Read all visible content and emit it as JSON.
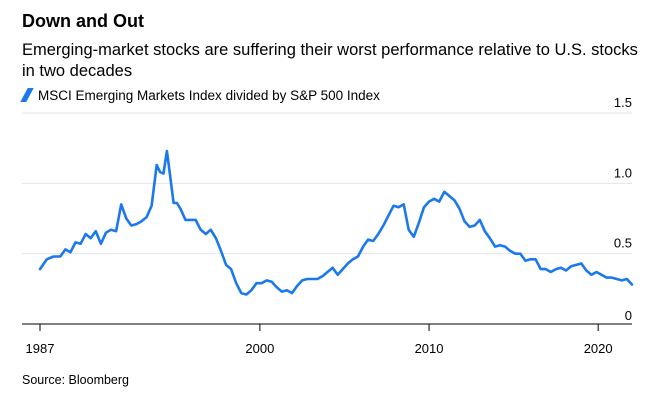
{
  "title": "Down and Out",
  "subtitle": "Emerging-market stocks are suffering their worst performance relative to U.S. stocks in two decades",
  "source": "Source: Bloomberg",
  "colors": {
    "series": "#1b79ec",
    "grid": "#e5e5e5",
    "axis": "#000000"
  },
  "chart_data": {
    "type": "line",
    "title": "Down and Out",
    "subtitle": "Emerging-market stocks are suffering their worst performance relative to U.S. stocks in two decades",
    "xlabel": "",
    "ylabel": "",
    "x_ticks": [
      1987,
      2000,
      2010,
      2020
    ],
    "y_ticks": [
      0,
      0.5,
      1.0,
      1.5
    ],
    "y_tick_labels": [
      "0",
      "0.5",
      "1.0",
      "1.5"
    ],
    "xlim": [
      1987,
      2022
    ],
    "ylim": [
      0,
      1.5
    ],
    "grid": true,
    "legend": "top-left",
    "series": [
      {
        "name": "MSCI Emerging Markets Index divided by S&P 500 Index",
        "color": "#1b79ec",
        "x": [
          1987.0,
          1987.4,
          1987.8,
          1988.2,
          1988.5,
          1988.8,
          1989.1,
          1989.4,
          1989.7,
          1990.0,
          1990.3,
          1990.6,
          1990.9,
          1991.2,
          1991.5,
          1991.8,
          1992.1,
          1992.4,
          1992.7,
          1993.0,
          1993.3,
          1993.6,
          1993.9,
          1994.1,
          1994.3,
          1994.5,
          1994.7,
          1994.9,
          1995.1,
          1995.3,
          1995.6,
          1995.9,
          1996.2,
          1996.5,
          1996.8,
          1997.1,
          1997.4,
          1997.7,
          1998.0,
          1998.3,
          1998.6,
          1998.9,
          1999.2,
          1999.5,
          1999.8,
          2000.1,
          2000.4,
          2000.7,
          2001.0,
          2001.3,
          2001.6,
          2001.9,
          2002.2,
          2002.5,
          2002.8,
          2003.1,
          2003.4,
          2003.7,
          2004.0,
          2004.3,
          2004.6,
          2004.9,
          2005.2,
          2005.5,
          2005.8,
          2006.1,
          2006.4,
          2006.7,
          2007.0,
          2007.3,
          2007.6,
          2007.9,
          2008.2,
          2008.5,
          2008.8,
          2009.1,
          2009.4,
          2009.7,
          2010.0,
          2010.3,
          2010.6,
          2010.9,
          2011.2,
          2011.5,
          2011.8,
          2012.1,
          2012.4,
          2012.7,
          2013.0,
          2013.3,
          2013.6,
          2013.9,
          2014.2,
          2014.5,
          2014.8,
          2015.1,
          2015.4,
          2015.7,
          2016.0,
          2016.3,
          2016.6,
          2016.9,
          2017.2,
          2017.5,
          2017.8,
          2018.1,
          2018.4,
          2018.7,
          2019.0,
          2019.3,
          2019.6,
          2019.9,
          2020.2,
          2020.5,
          2020.8,
          2021.1,
          2021.4,
          2021.7,
          2022.0
        ],
        "values": [
          0.39,
          0.46,
          0.48,
          0.48,
          0.53,
          0.51,
          0.58,
          0.57,
          0.64,
          0.61,
          0.66,
          0.57,
          0.65,
          0.67,
          0.66,
          0.85,
          0.75,
          0.7,
          0.71,
          0.73,
          0.76,
          0.84,
          1.13,
          1.08,
          1.07,
          1.23,
          1.05,
          0.86,
          0.86,
          0.82,
          0.74,
          0.74,
          0.74,
          0.67,
          0.64,
          0.67,
          0.61,
          0.52,
          0.42,
          0.39,
          0.29,
          0.22,
          0.21,
          0.24,
          0.29,
          0.29,
          0.31,
          0.3,
          0.26,
          0.23,
          0.24,
          0.22,
          0.27,
          0.31,
          0.32,
          0.32,
          0.32,
          0.34,
          0.37,
          0.4,
          0.35,
          0.39,
          0.43,
          0.46,
          0.48,
          0.55,
          0.6,
          0.59,
          0.64,
          0.7,
          0.77,
          0.84,
          0.83,
          0.85,
          0.67,
          0.62,
          0.72,
          0.83,
          0.87,
          0.89,
          0.87,
          0.94,
          0.91,
          0.88,
          0.82,
          0.73,
          0.69,
          0.7,
          0.74,
          0.66,
          0.61,
          0.55,
          0.56,
          0.55,
          0.52,
          0.5,
          0.5,
          0.45,
          0.46,
          0.46,
          0.39,
          0.39,
          0.37,
          0.39,
          0.4,
          0.38,
          0.41,
          0.42,
          0.43,
          0.38,
          0.35,
          0.37,
          0.35,
          0.33,
          0.33,
          0.32,
          0.31,
          0.32,
          0.28
        ]
      }
    ]
  }
}
